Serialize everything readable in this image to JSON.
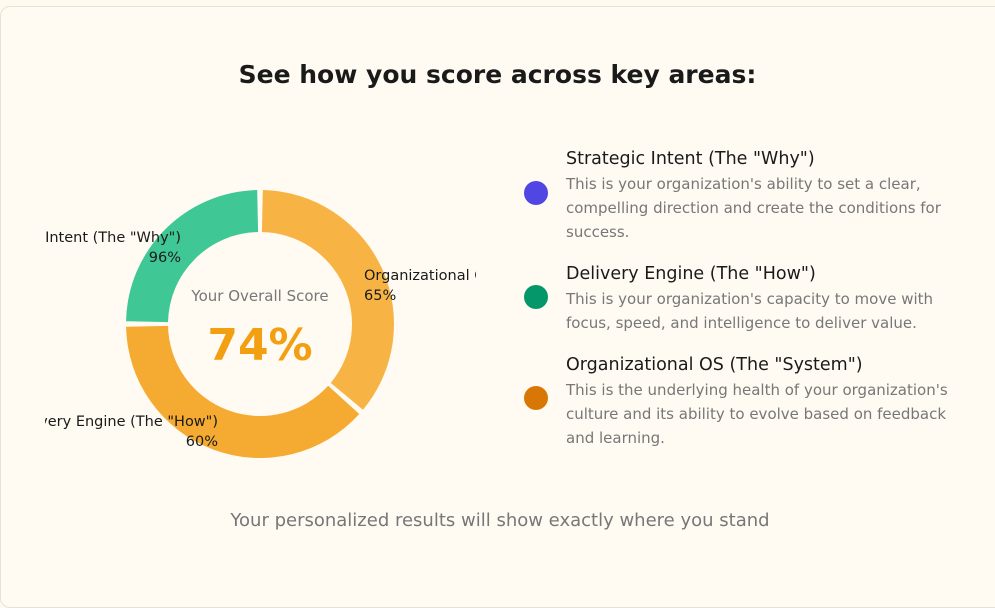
{
  "title": "See how you score across key areas:",
  "chart_data": {
    "type": "pie",
    "variant": "donut",
    "center_label": "Your Overall Score",
    "center_value": "74%",
    "slices": [
      {
        "label": "Organizational OS (The \"System\")",
        "value": 65,
        "value_label": "65%",
        "color": "#f7b444"
      },
      {
        "label": "Delivery Engine (The \"How\")",
        "value": 60,
        "value_label": "60%",
        "color": "#f5aa32"
      },
      {
        "label": "Strategic Intent (The \"Why\")",
        "value": 96,
        "value_label": "96%",
        "color": "#40c796"
      }
    ]
  },
  "legend": [
    {
      "title": "Strategic Intent (The \"Why\")",
      "desc": "This is your organization's ability to set a clear, compelling direction and create the conditions for success.",
      "color": "#5046e4"
    },
    {
      "title": "Delivery Engine (The \"How\")",
      "desc": "This is your organization's capacity to move with focus, speed, and intelligence to deliver value.",
      "color": "#059669"
    },
    {
      "title": "Organizational OS (The \"System\")",
      "desc": "This is the underlying health of your organization's culture and its ability to evolve based on feedback and learning.",
      "color": "#d97706"
    }
  ],
  "footer": "Your personalized results will show exactly where you stand"
}
